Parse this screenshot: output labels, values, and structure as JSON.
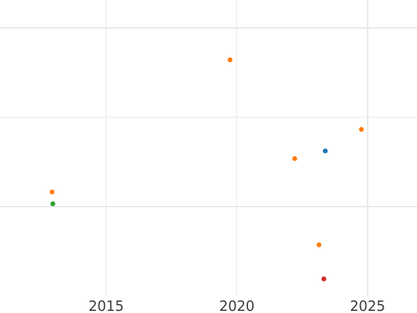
{
  "chart_data": {
    "type": "scatter",
    "title": "",
    "xlabel": "",
    "ylabel": "",
    "x_tick_labels": [
      "2015",
      "2020",
      "2025"
    ],
    "x_ticks": [
      2015,
      2020,
      2025
    ],
    "y_gridline_values": [
      1,
      2,
      3
    ],
    "x_visible_range": [
      2010.94,
      2026.89
    ],
    "y_visible_range": [
      -0.19,
      3.31
    ],
    "y_axis_labeled": false,
    "grid": true,
    "legend": "none",
    "series": [
      {
        "name": "orange",
        "color": "#ff7f0e",
        "points": [
          {
            "x": 2019.74,
            "y": 2.64
          },
          {
            "x": 2024.76,
            "y": 1.86
          },
          {
            "x": 2022.22,
            "y": 1.54
          },
          {
            "x": 2012.93,
            "y": 1.16
          },
          {
            "x": 2023.14,
            "y": 0.57
          }
        ]
      },
      {
        "name": "blue",
        "color": "#1f77b4",
        "points": [
          {
            "x": 2023.37,
            "y": 1.62
          }
        ]
      },
      {
        "name": "green",
        "color": "#2ca02c",
        "points": [
          {
            "x": 2012.95,
            "y": 1.03
          }
        ]
      },
      {
        "name": "red",
        "color": "#d62728",
        "points": [
          {
            "x": 2023.33,
            "y": 0.19
          }
        ]
      }
    ],
    "style": {
      "background_color": "#ffffff",
      "gridline_color": "#e8e8e8",
      "tick_label_color": "#3d3d3d"
    }
  }
}
